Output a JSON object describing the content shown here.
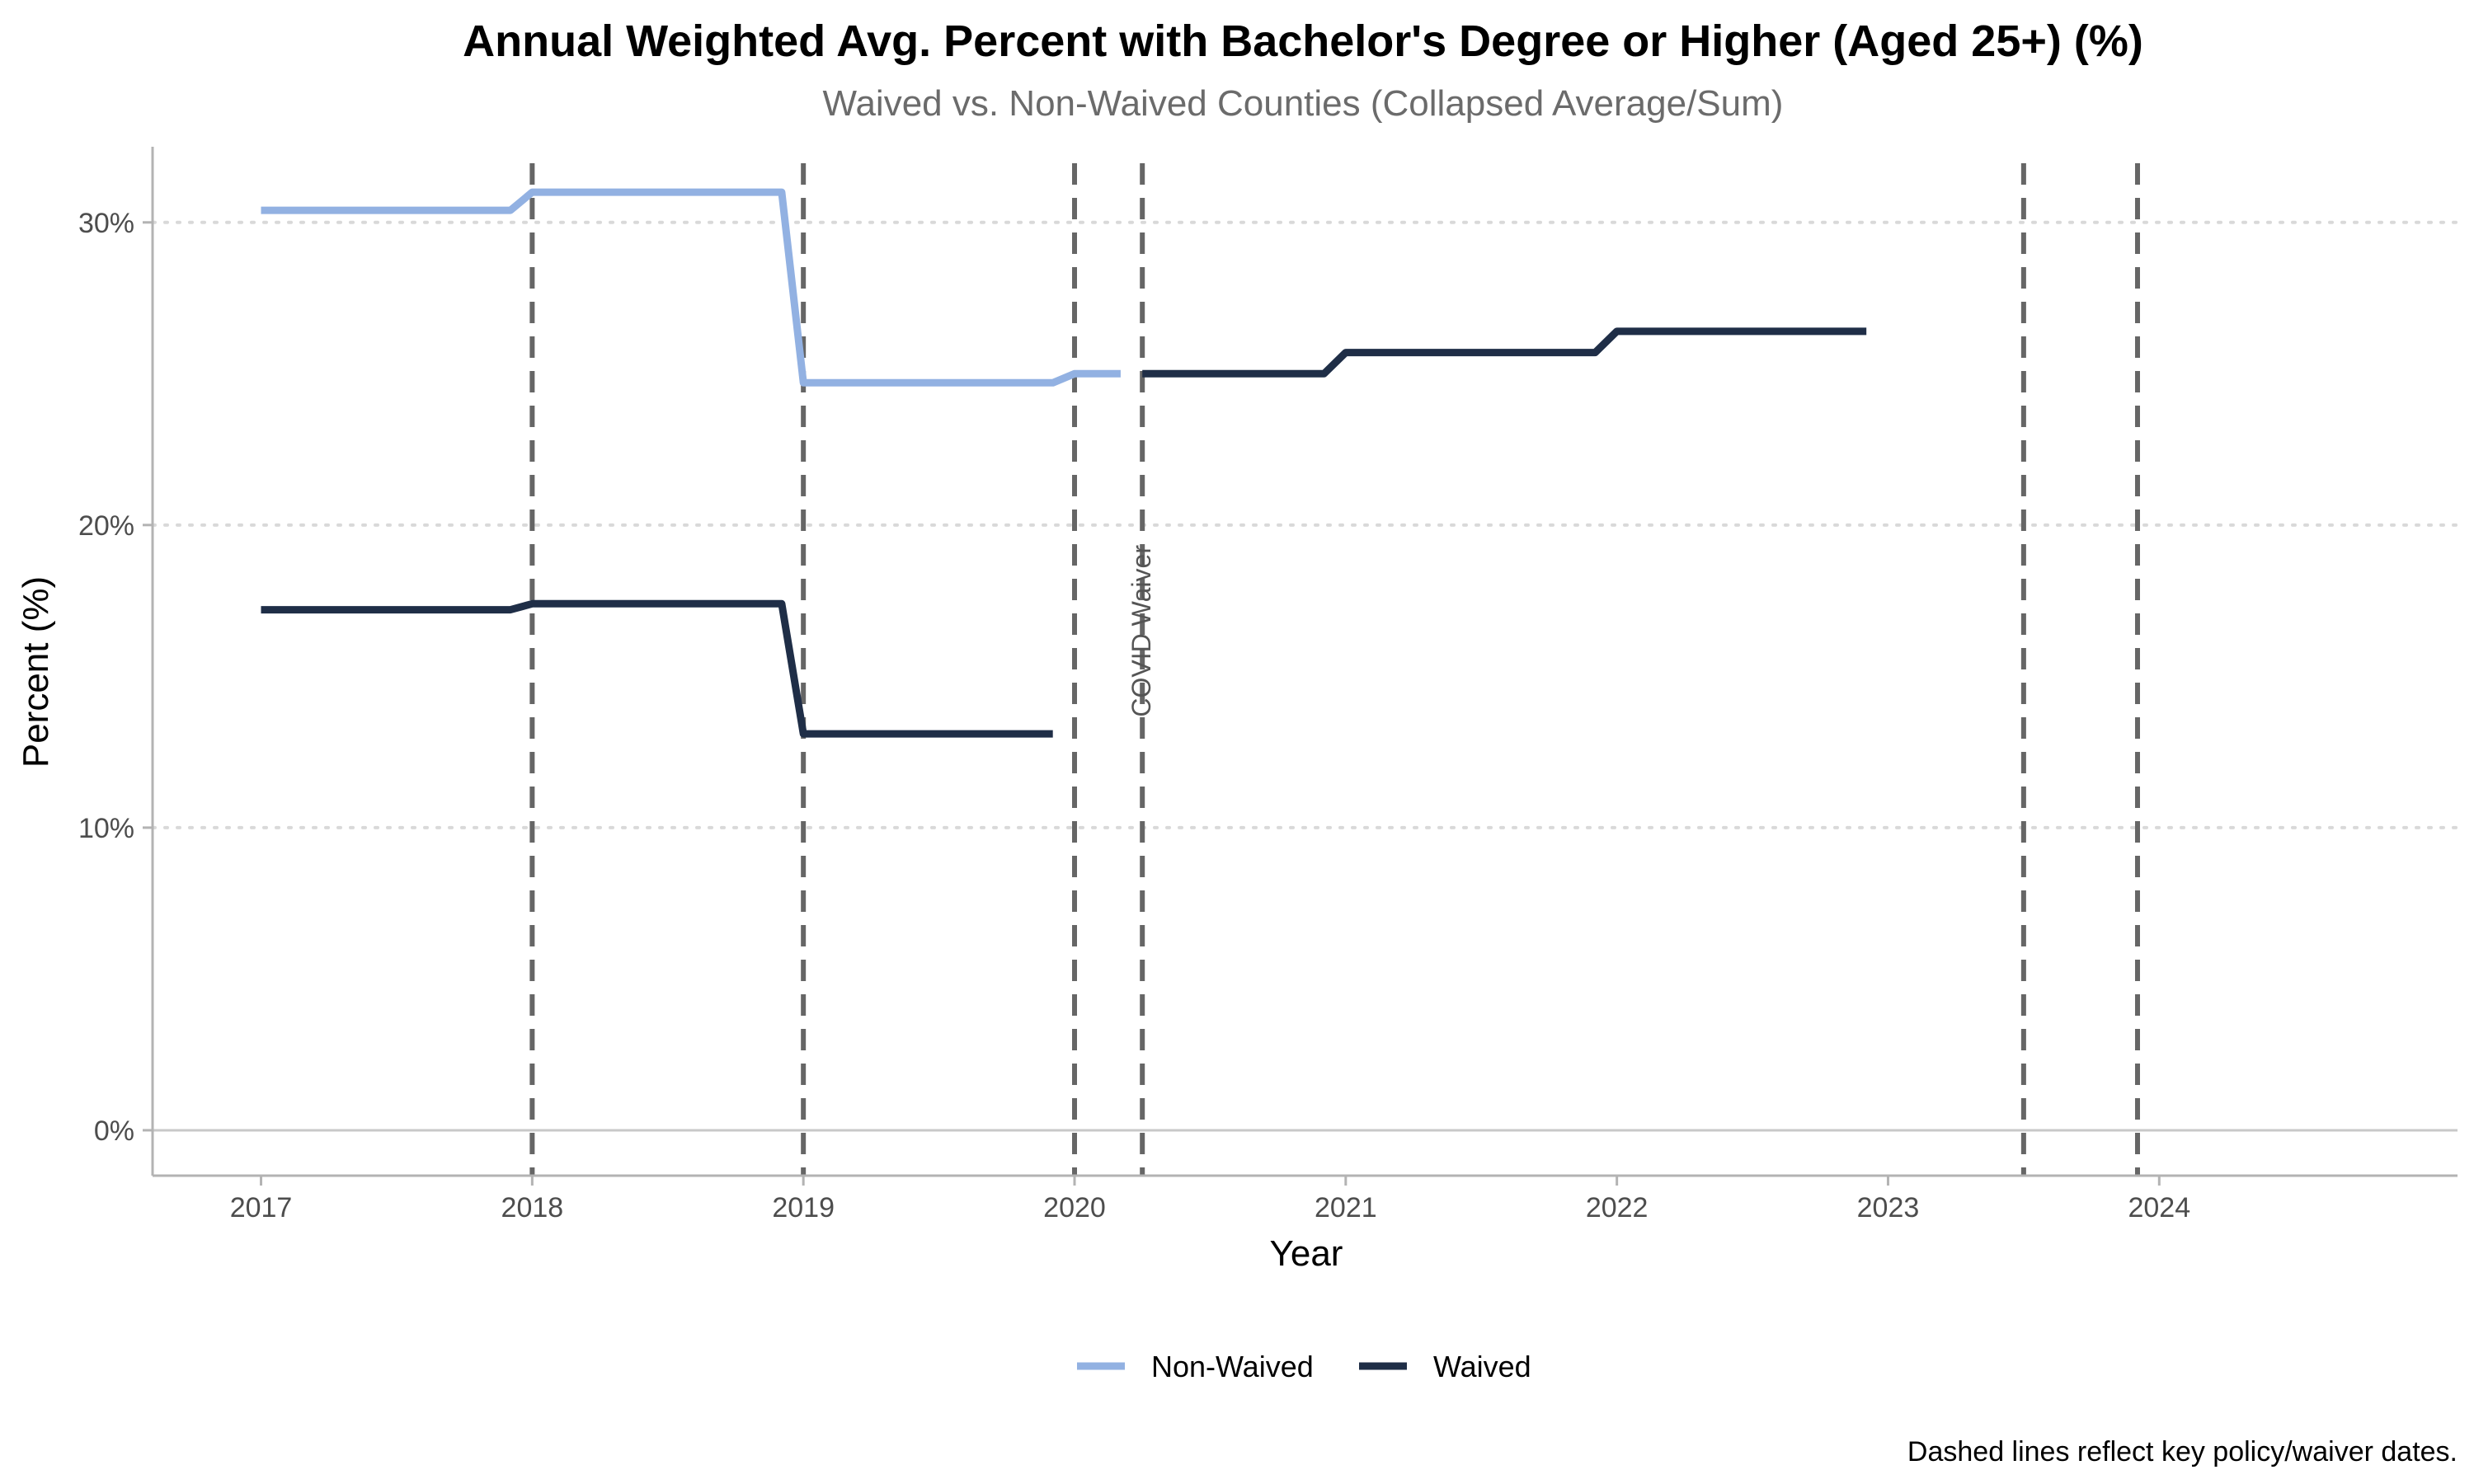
{
  "chart_data": {
    "type": "line",
    "title": "Annual Weighted Avg. Percent with Bachelor's Degree or Higher (Aged 25+) (%)",
    "subtitle": "Waived vs. Non-Waived Counties (Collapsed Average/Sum)",
    "xlabel": "Year",
    "ylabel": "Percent (%)",
    "caption": "Dashed lines reflect key policy/waiver dates.",
    "x_ticks": [
      "2017",
      "2018",
      "2019",
      "2020",
      "2021",
      "2022",
      "2023",
      "2024"
    ],
    "y_ticks": [
      "0%",
      "10%",
      "20%",
      "30%"
    ],
    "xlim": [
      2016.6,
      2025.1
    ],
    "ylim": [
      -1.5,
      32.5
    ],
    "grid": "horizontal dotted",
    "legend_position": "bottom",
    "series": [
      {
        "name": "Non-Waived",
        "color": "#92b1e2",
        "segments": [
          [
            [
              2017.0,
              30.4
            ],
            [
              2017.92,
              30.4
            ],
            [
              2018.0,
              31.0
            ],
            [
              2018.92,
              31.0
            ],
            [
              2019.0,
              24.7
            ],
            [
              2019.92,
              24.7
            ],
            [
              2020.0,
              25.0
            ],
            [
              2020.17,
              25.0
            ]
          ]
        ]
      },
      {
        "name": "Waived",
        "color": "#1f2e47",
        "segments": [
          [
            [
              2017.0,
              17.2
            ],
            [
              2017.92,
              17.2
            ],
            [
              2018.0,
              17.4
            ],
            [
              2018.92,
              17.4
            ],
            [
              2019.0,
              13.1
            ],
            [
              2019.92,
              13.1
            ]
          ],
          [
            [
              2020.25,
              25.0
            ],
            [
              2020.92,
              25.0
            ],
            [
              2021.0,
              25.7
            ],
            [
              2021.92,
              25.7
            ],
            [
              2022.0,
              26.4
            ],
            [
              2022.92,
              26.4
            ]
          ]
        ]
      }
    ],
    "vlines": [
      2018.0,
      2019.0,
      2020.0,
      2020.25,
      2023.5,
      2023.92
    ],
    "annotations": [
      {
        "text": "COVID Waiver",
        "x": 2020.25,
        "y": 16.5
      }
    ]
  }
}
